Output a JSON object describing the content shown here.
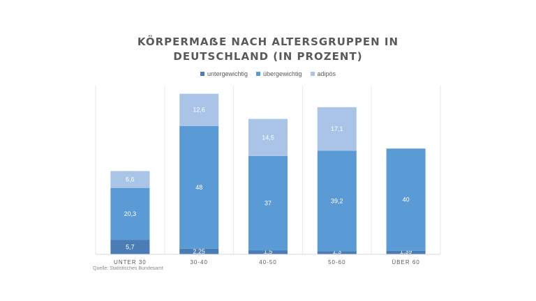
{
  "title_lines": [
    "KÖRPERMAẞE NACH ALTERSGRUPPEN IN",
    "DEUTSCHLAND (IN PROZENT)"
  ],
  "source": "Quelle: Statistisches Bundesamt",
  "colors": {
    "untergewichtig": "#4a7db5",
    "uebergewichtig": "#5b9bd5",
    "adipoes": "#a9c4e6",
    "grid": "#e6e6e6",
    "axis": "#d9d9d9",
    "tick_text": "#595959",
    "label_dark": "#ffffff",
    "label_light": "#ffffff"
  },
  "chart_data": {
    "type": "bar",
    "stacked": true,
    "categories": [
      "UNTER 30",
      "30-40",
      "40-50",
      "50-60",
      "ÜBER 60"
    ],
    "series": [
      {
        "name": "untergewichtig",
        "values": [
          5.7,
          2.25,
          1.5,
          1.3,
          1.39
        ],
        "labels": [
          "5,7",
          "2,25",
          "1,5",
          "1,3",
          "1,39"
        ]
      },
      {
        "name": "übergewichtig",
        "values": [
          20.3,
          48,
          37,
          39.2,
          40
        ],
        "labels": [
          "20,3",
          "48",
          "37",
          "39,2",
          "40"
        ]
      },
      {
        "name": "adipös",
        "values": [
          6.6,
          12.6,
          14.5,
          17.1,
          null
        ],
        "labels": [
          "6,6",
          "12,6",
          "14,5",
          "17,1",
          ""
        ]
      }
    ],
    "legend_position": "top",
    "grid": "vertical",
    "ylim": [
      0,
      66
    ]
  }
}
